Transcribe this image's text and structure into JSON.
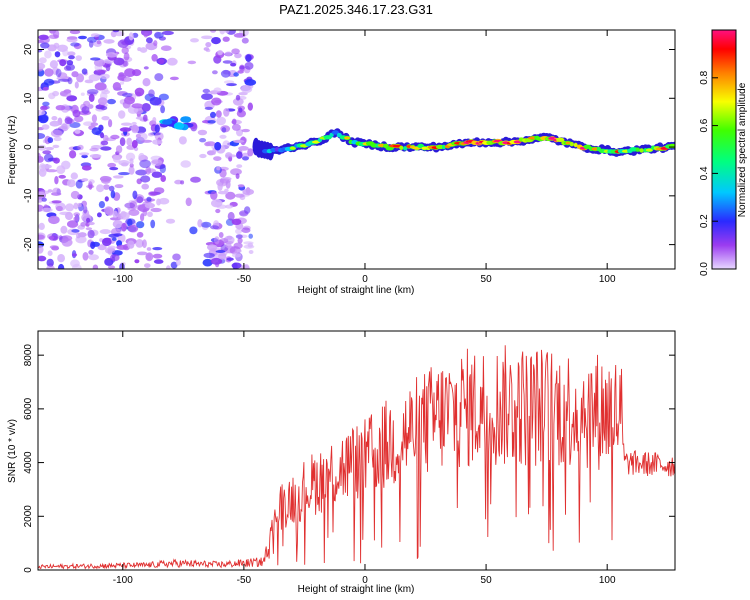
{
  "chart_data": [
    {
      "type": "heatmap",
      "title": "PAZ1.2025.346.17.23.G31",
      "xlabel": "Height of straight line (km)",
      "ylabel": "Frequency (Hz)",
      "xlim": [
        -135,
        128
      ],
      "ylim": [
        -25,
        24
      ],
      "xticks": [
        -100,
        -50,
        0,
        50,
        100
      ],
      "xtick_labels": [
        "-100",
        "-50",
        "0",
        "50",
        "100"
      ],
      "yticks": [
        -20,
        -10,
        0,
        10,
        20
      ],
      "ytick_labels": [
        "-20",
        "-10",
        "0",
        "10",
        "20"
      ],
      "colorbar": {
        "label": "Normalized spectral amplitude",
        "range": [
          0,
          1
        ],
        "ticks": [
          0.0,
          0.2,
          0.4,
          0.6,
          0.8
        ],
        "tick_labels": [
          "0.0",
          "0.2",
          "0.4",
          "0.6",
          "0.8"
        ]
      },
      "noise_region_x": [
        -135,
        -47
      ],
      "noise_gap_x": [
        -83,
        -66
      ],
      "signal_track": [
        {
          "x": -78,
          "f": 5,
          "a": 0.35
        },
        {
          "x": -45,
          "f": 0,
          "a": 0.15
        },
        {
          "x": -40,
          "f": -1,
          "a": 0.3
        },
        {
          "x": -30,
          "f": 0,
          "a": 0.45
        },
        {
          "x": -20,
          "f": 1,
          "a": 0.5
        },
        {
          "x": -12,
          "f": 3,
          "a": 0.45
        },
        {
          "x": -5,
          "f": 1,
          "a": 0.6
        },
        {
          "x": 10,
          "f": 0,
          "a": 0.7
        },
        {
          "x": 30,
          "f": 0,
          "a": 0.75
        },
        {
          "x": 45,
          "f": 1,
          "a": 0.95
        },
        {
          "x": 60,
          "f": 1,
          "a": 0.85
        },
        {
          "x": 75,
          "f": 2,
          "a": 0.95
        },
        {
          "x": 90,
          "f": 0,
          "a": 0.85
        },
        {
          "x": 105,
          "f": -1,
          "a": 0.7
        },
        {
          "x": 125,
          "f": 0,
          "a": 0.8
        }
      ]
    },
    {
      "type": "line",
      "xlabel": "Height of straight line (km)",
      "ylabel": "SNR (10 * v/v)",
      "xlim": [
        -135,
        128
      ],
      "ylim": [
        0,
        8900
      ],
      "xticks": [
        -100,
        -50,
        0,
        50,
        100
      ],
      "xtick_labels": [
        "-100",
        "-50",
        "0",
        "50",
        "100"
      ],
      "yticks": [
        0,
        2000,
        4000,
        6000,
        8000
      ],
      "ytick_labels": [
        "0",
        "2000",
        "4000",
        "6000",
        "8000"
      ],
      "color": "#e03030",
      "envelope": {
        "x": [
          -135,
          -90,
          -78,
          -60,
          -42,
          -40,
          -36,
          -30,
          -20,
          -10,
          0,
          10,
          20,
          30,
          40,
          50,
          60,
          70,
          80,
          90,
          100,
          106,
          107,
          115,
          128
        ],
        "y": [
          120,
          180,
          250,
          200,
          300,
          900,
          2300,
          2700,
          3300,
          3800,
          4100,
          4700,
          5200,
          5700,
          6000,
          6100,
          6100,
          6100,
          6050,
          6000,
          5900,
          5800,
          4000,
          3950,
          3900
        ]
      }
    }
  ]
}
